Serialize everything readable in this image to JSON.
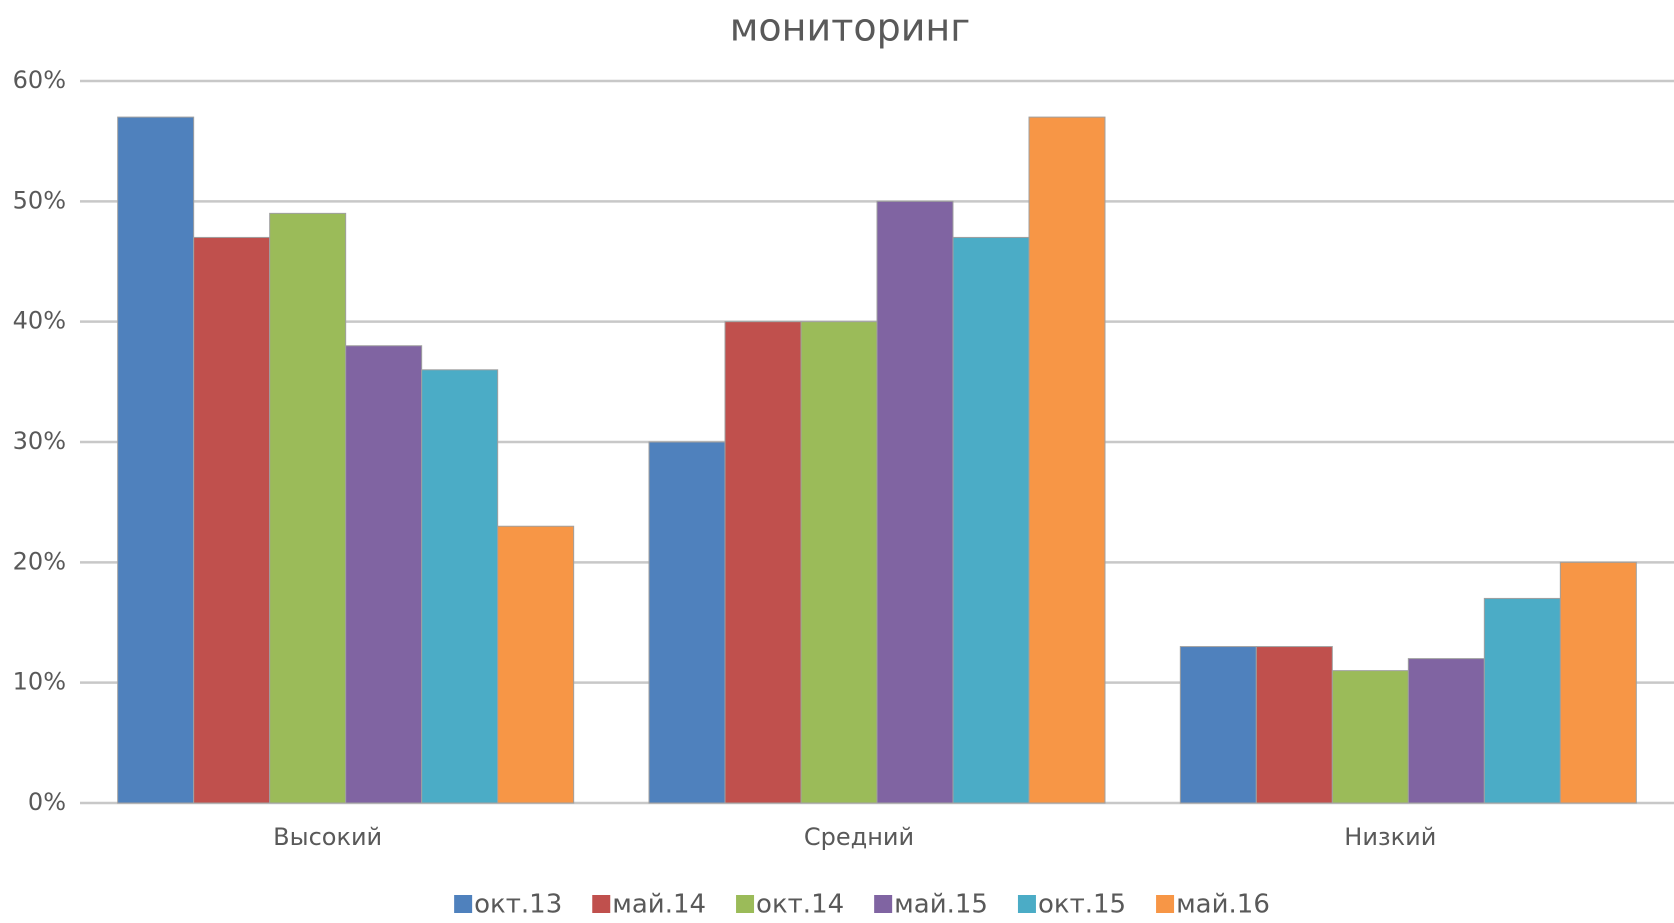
{
  "chart_data": {
    "type": "bar",
    "title": "мониторинг",
    "categories": [
      "Высокий",
      "Средний",
      "Низкий"
    ],
    "series": [
      {
        "name": "окт.13",
        "color": "#4f81bd",
        "values": [
          57,
          30,
          13
        ]
      },
      {
        "name": "май.14",
        "color": "#c0504d",
        "values": [
          47,
          40,
          13
        ]
      },
      {
        "name": "окт.14",
        "color": "#9bbb59",
        "values": [
          49,
          40,
          11
        ]
      },
      {
        "name": "май.15",
        "color": "#8064a2",
        "values": [
          38,
          50,
          12
        ]
      },
      {
        "name": "окт.15",
        "color": "#4bacc6",
        "values": [
          36,
          47,
          17
        ]
      },
      {
        "name": "май.16",
        "color": "#f79646",
        "values": [
          23,
          57,
          20
        ]
      }
    ],
    "ylim": [
      0,
      60
    ],
    "yticks": [
      {
        "value": 0,
        "label": "0%"
      },
      {
        "value": 10,
        "label": "10%"
      },
      {
        "value": 20,
        "label": "20%"
      },
      {
        "value": 30,
        "label": "30%"
      },
      {
        "value": 40,
        "label": "40%"
      },
      {
        "value": 50,
        "label": "50%"
      },
      {
        "value": 60,
        "label": "60%"
      }
    ],
    "grid": true,
    "legend": "bottom"
  }
}
